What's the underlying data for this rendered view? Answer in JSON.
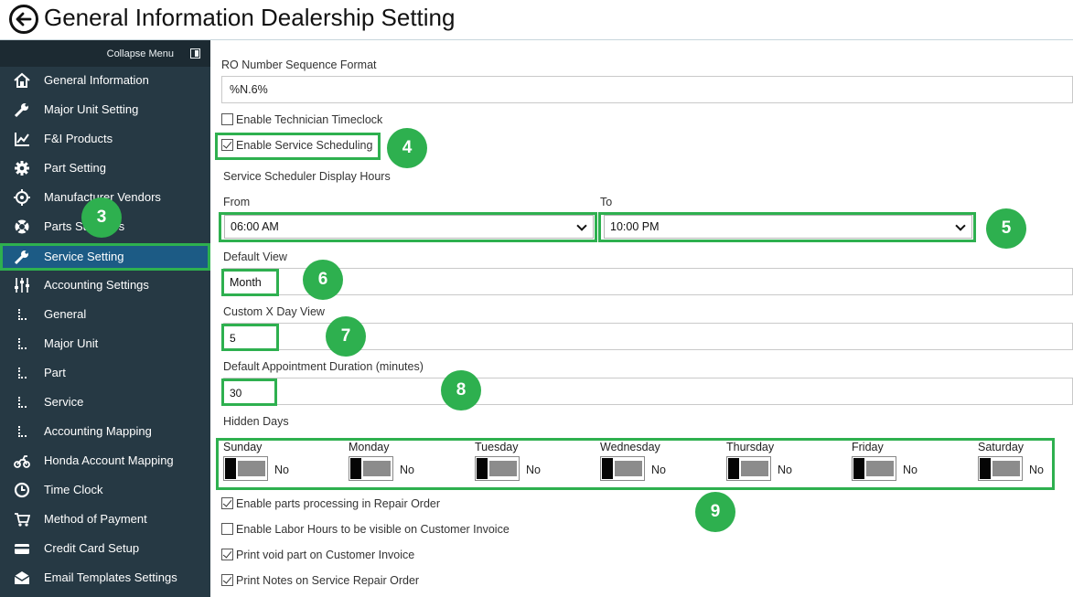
{
  "header": {
    "title": "General Information Dealership Setting"
  },
  "sidebar": {
    "collapse_label": "Collapse Menu",
    "items": [
      {
        "label": "General Information",
        "icon": "home-icon"
      },
      {
        "label": "Major Unit Setting",
        "icon": "wrench-icon"
      },
      {
        "label": "F&I Products",
        "icon": "line-chart-icon"
      },
      {
        "label": "Part Setting",
        "icon": "gear-icon"
      },
      {
        "label": "Manufacturer Vendors",
        "icon": "target-icon"
      },
      {
        "label": "Parts Suppliers",
        "icon": "lifebuoy-icon"
      },
      {
        "label": "Service Setting",
        "icon": "wrench-icon",
        "active": true
      },
      {
        "label": "Accounting Settings",
        "icon": "sliders-icon"
      },
      {
        "label": "General",
        "icon": "sub-level-icon"
      },
      {
        "label": "Major Unit",
        "icon": "sub-level-icon"
      },
      {
        "label": "Part",
        "icon": "sub-level-icon"
      },
      {
        "label": "Service",
        "icon": "sub-level-icon"
      },
      {
        "label": "Accounting Mapping",
        "icon": "sub-level-icon"
      },
      {
        "label": "Honda Account Mapping",
        "icon": "motorcycle-icon"
      },
      {
        "label": "Time Clock",
        "icon": "clock-icon"
      },
      {
        "label": "Method of Payment",
        "icon": "cart-icon"
      },
      {
        "label": "Credit Card Setup",
        "icon": "credit-card-icon"
      },
      {
        "label": "Email Templates Settings",
        "icon": "envelope-icon"
      }
    ]
  },
  "form": {
    "ro_format_label": "RO Number Sequence Format",
    "ro_format_value": "%N.6%",
    "tech_timeclock_label": "Enable Technician Timeclock",
    "tech_timeclock_checked": false,
    "service_scheduling_label": "Enable Service Scheduling",
    "service_scheduling_checked": true,
    "display_hours_label": "Service Scheduler Display Hours",
    "from_label": "From",
    "from_value": "06:00 AM",
    "to_label": "To",
    "to_value": "10:00 PM",
    "default_view_label": "Default View",
    "default_view_value": "Month",
    "custom_x_label": "Custom X Day View",
    "custom_x_value": "5",
    "duration_label": "Default Appointment Duration (minutes)",
    "duration_value": "30",
    "hidden_days_label": "Hidden Days",
    "days": [
      {
        "name": "Sunday",
        "value": "No"
      },
      {
        "name": "Monday",
        "value": "No"
      },
      {
        "name": "Tuesday",
        "value": "No"
      },
      {
        "name": "Wednesday",
        "value": "No"
      },
      {
        "name": "Thursday",
        "value": "No"
      },
      {
        "name": "Friday",
        "value": "No"
      },
      {
        "name": "Saturday",
        "value": "No"
      }
    ],
    "parts_processing_label": "Enable parts processing in Repair Order",
    "parts_processing_checked": true,
    "labor_hours_label": "Enable Labor Hours to be visible on Customer Invoice",
    "labor_hours_checked": false,
    "print_void_label": "Print void part on Customer Invoice",
    "print_void_checked": true,
    "print_notes_label": "Print Notes on Service Repair Order",
    "print_notes_checked": true
  },
  "annotations": {
    "badge_3": "3",
    "badge_4": "4",
    "badge_5": "5",
    "badge_6": "6",
    "badge_7": "7",
    "badge_8": "8",
    "badge_9": "9",
    "highlight_color": "#2eb04f"
  },
  "colors": {
    "sidebar_bg": "#263944",
    "active_bg": "#1c5b85",
    "accent": "#2eb04f"
  }
}
